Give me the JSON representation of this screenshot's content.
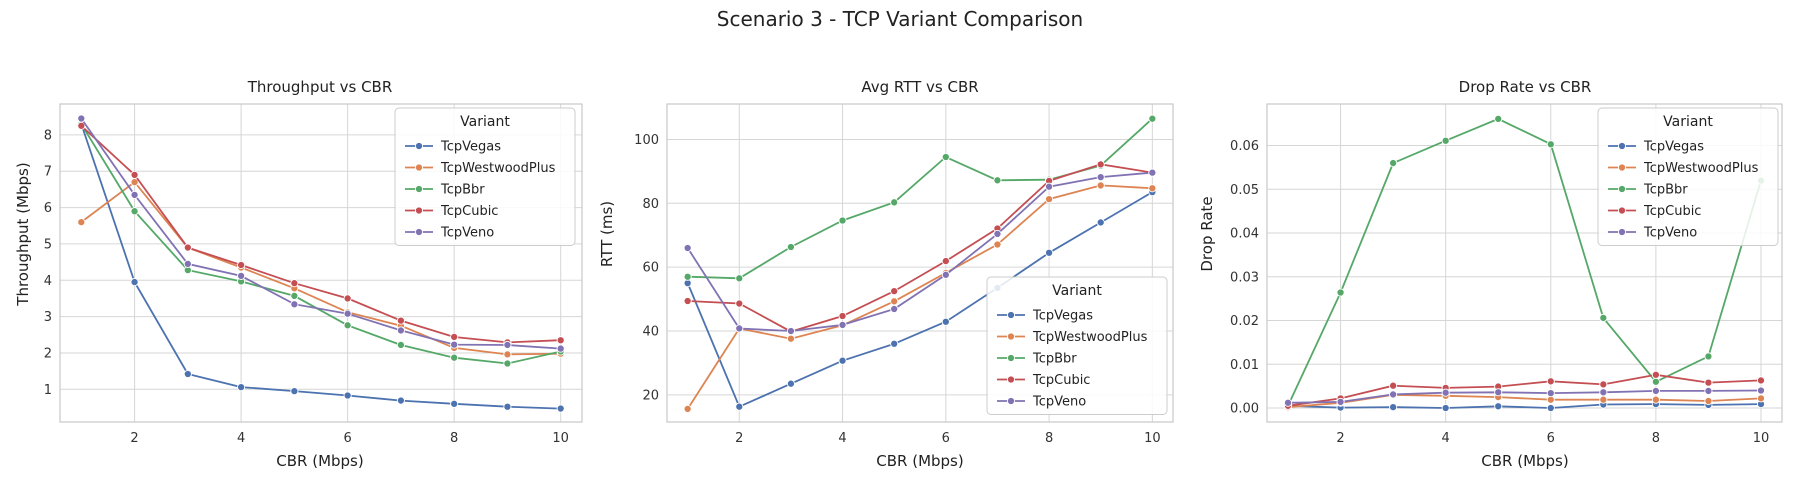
{
  "figure": {
    "title": "Scenario 3 - TCP Variant Comparison"
  },
  "chart_data": [
    {
      "type": "line",
      "title": "Throughput vs CBR",
      "xlabel": "CBR (Mbps)",
      "ylabel": "Throughput (Mbps)",
      "xlim": [
        0.6,
        10.4
      ],
      "ylim": [
        0.1,
        8.85
      ],
      "xticks": [
        2,
        4,
        6,
        8,
        10
      ],
      "yticks": [
        1,
        2,
        3,
        4,
        5,
        6,
        7,
        8
      ],
      "legend": {
        "title": "Variant",
        "placement": "top-right"
      },
      "x": [
        1,
        2,
        3,
        4,
        5,
        6,
        7,
        8,
        9,
        10
      ],
      "series": [
        {
          "name": "TcpVegas",
          "color": "#4c72b0",
          "values": [
            8.3,
            3.95,
            1.42,
            1.06,
            0.95,
            0.83,
            0.69,
            0.6,
            0.52,
            0.47
          ]
        },
        {
          "name": "TcpWestwoodPlus",
          "color": "#dd8452",
          "values": [
            5.6,
            6.7,
            4.9,
            4.35,
            3.78,
            3.12,
            2.75,
            2.14,
            1.96,
            1.98
          ]
        },
        {
          "name": "TcpBbr",
          "color": "#55a868",
          "values": [
            8.3,
            5.9,
            4.28,
            3.97,
            3.57,
            2.76,
            2.22,
            1.87,
            1.71,
            2.04
          ]
        },
        {
          "name": "TcpCubic",
          "color": "#c44e52",
          "values": [
            8.25,
            6.9,
            4.9,
            4.42,
            3.92,
            3.5,
            2.89,
            2.44,
            2.29,
            2.35
          ]
        },
        {
          "name": "TcpVeno",
          "color": "#8172b3",
          "values": [
            8.45,
            6.35,
            4.45,
            4.12,
            3.34,
            3.08,
            2.62,
            2.23,
            2.22,
            2.12
          ]
        }
      ]
    },
    {
      "type": "line",
      "title": "Avg RTT vs CBR",
      "xlabel": "CBR (Mbps)",
      "ylabel": "RTT (ms)",
      "xlim": [
        0.6,
        10.4
      ],
      "ylim": [
        11.5,
        111.1
      ],
      "xticks": [
        2,
        4,
        6,
        8,
        10
      ],
      "yticks": [
        20,
        40,
        60,
        80,
        100
      ],
      "legend": {
        "title": "Variant",
        "placement": "bottom-right"
      },
      "x": [
        1,
        2,
        3,
        4,
        5,
        6,
        7,
        8,
        9,
        10
      ],
      "series": [
        {
          "name": "TcpVegas",
          "color": "#4c72b0",
          "values": [
            55,
            16.3,
            23.5,
            30.7,
            36,
            42.9,
            53.5,
            64.5,
            74,
            83.5
          ]
        },
        {
          "name": "TcpWestwoodPlus",
          "color": "#dd8452",
          "values": [
            15.6,
            40.8,
            37.6,
            41.8,
            49.3,
            58.2,
            67.1,
            81.3,
            85.6,
            84.7
          ]
        },
        {
          "name": "TcpBbr",
          "color": "#55a868",
          "values": [
            57,
            56.5,
            66.3,
            74.6,
            80.3,
            94.5,
            87.2,
            87.4,
            91.8,
            106.5
          ]
        },
        {
          "name": "TcpCubic",
          "color": "#c44e52",
          "values": [
            49.4,
            48.6,
            39.8,
            44.7,
            52.5,
            61.9,
            72.1,
            87,
            92.2,
            89.6
          ]
        },
        {
          "name": "TcpVeno",
          "color": "#8172b3",
          "values": [
            66,
            40.8,
            40,
            41.9,
            46.9,
            57.6,
            70.4,
            85.2,
            88.2,
            89.6
          ]
        }
      ]
    },
    {
      "type": "line",
      "title": "Drop Rate vs CBR",
      "xlabel": "CBR (Mbps)",
      "ylabel": "Drop Rate",
      "xlim": [
        0.6,
        10.4
      ],
      "ylim": [
        -0.0032,
        0.0695
      ],
      "xticks": [
        2,
        4,
        6,
        8,
        10
      ],
      "yticks": [
        0.0,
        0.01,
        0.02,
        0.03,
        0.04,
        0.05,
        0.06
      ],
      "ytick_labels": [
        "0.00",
        "0.01",
        "0.02",
        "0.03",
        "0.04",
        "0.05",
        "0.06"
      ],
      "legend": {
        "title": "Variant",
        "placement": "top-right"
      },
      "x": [
        1,
        2,
        3,
        4,
        5,
        6,
        7,
        8,
        9,
        10
      ],
      "series": [
        {
          "name": "TcpVegas",
          "color": "#4c72b0",
          "values": [
            0.0005,
            0.0001,
            0.0002,
            0.0,
            0.0004,
            0.0,
            0.0008,
            0.0009,
            0.0007,
            0.0009
          ]
        },
        {
          "name": "TcpWestwoodPlus",
          "color": "#dd8452",
          "values": [
            0.0002,
            0.0012,
            0.003,
            0.0028,
            0.0025,
            0.0019,
            0.0019,
            0.0019,
            0.0016,
            0.0022
          ]
        },
        {
          "name": "TcpBbr",
          "color": "#55a868",
          "values": [
            0.0005,
            0.0264,
            0.056,
            0.0611,
            0.0661,
            0.0603,
            0.0206,
            0.006,
            0.0118,
            0.052
          ]
        },
        {
          "name": "TcpCubic",
          "color": "#c44e52",
          "values": [
            0.0005,
            0.0022,
            0.0051,
            0.0046,
            0.0049,
            0.0061,
            0.0054,
            0.0076,
            0.0058,
            0.0063
          ]
        },
        {
          "name": "TcpVeno",
          "color": "#8172b3",
          "values": [
            0.0012,
            0.0014,
            0.0031,
            0.0035,
            0.0036,
            0.0034,
            0.0036,
            0.0039,
            0.0039,
            0.004
          ]
        }
      ]
    }
  ]
}
